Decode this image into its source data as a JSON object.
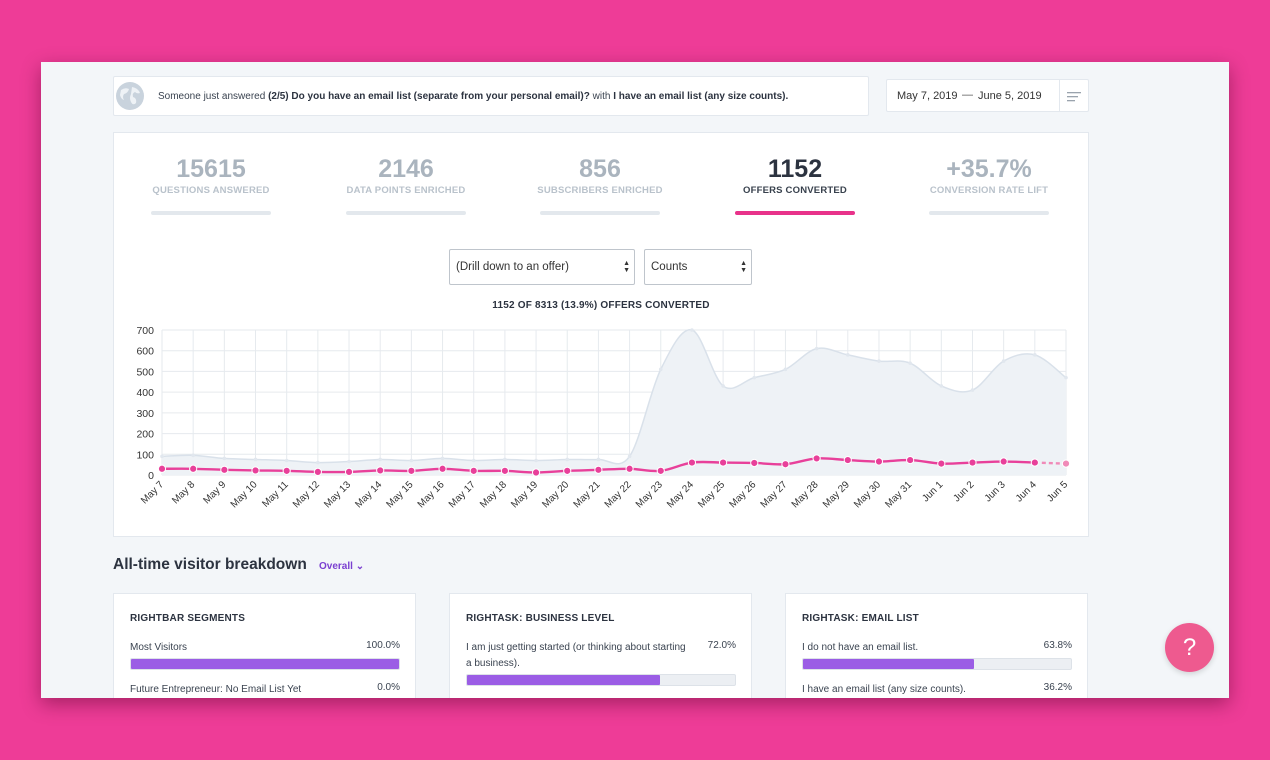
{
  "ticker": {
    "prefix": "Someone just answered",
    "step": "(2/5)",
    "question": "Do you have an email list (separate from your personal email)?",
    "with": "with",
    "answer": "I have an email list (any size counts)."
  },
  "date_range": {
    "start": "May 7, 2019",
    "separator": "—",
    "end": "June 5, 2019"
  },
  "stats": [
    {
      "value": "15615",
      "label": "QUESTIONS ANSWERED",
      "active": false
    },
    {
      "value": "2146",
      "label": "DATA POINTS ENRICHED",
      "active": false
    },
    {
      "value": "856",
      "label": "SUBSCRIBERS ENRICHED",
      "active": false
    },
    {
      "value": "1152",
      "label": "OFFERS CONVERTED",
      "active": true
    },
    {
      "value": "+35.7%",
      "label": "CONVERSION RATE LIFT",
      "active": false
    }
  ],
  "filters": {
    "offer_select": "(Drill down to an offer)",
    "mode_select": "Counts"
  },
  "chart_title": "1152 OF 8313 (13.9%) OFFERS CONVERTED",
  "chart_data": {
    "type": "line",
    "categories": [
      "May 7",
      "May 8",
      "May 9",
      "May 10",
      "May 11",
      "May 12",
      "May 13",
      "May 14",
      "May 15",
      "May 16",
      "May 17",
      "May 18",
      "May 19",
      "May 20",
      "May 21",
      "May 22",
      "May 23",
      "May 24",
      "May 25",
      "May 26",
      "May 27",
      "May 28",
      "May 29",
      "May 30",
      "May 31",
      "Jun 1",
      "Jun 2",
      "Jun 3",
      "Jun 4",
      "Jun 5"
    ],
    "series": [
      {
        "values": [
          90,
          95,
          80,
          75,
          70,
          60,
          65,
          75,
          70,
          80,
          70,
          75,
          70,
          75,
          75,
          90,
          510,
          700,
          430,
          470,
          510,
          610,
          580,
          550,
          540,
          430,
          410,
          550,
          580,
          470
        ],
        "color": "#d9e1ea"
      },
      {
        "values": [
          30,
          30,
          25,
          22,
          20,
          15,
          15,
          22,
          20,
          30,
          20,
          20,
          12,
          20,
          25,
          30,
          20,
          60,
          60,
          58,
          52,
          80,
          72,
          65,
          72,
          55,
          60,
          65,
          60,
          55
        ],
        "color": "#e8409a"
      }
    ],
    "ylim": [
      0,
      700
    ],
    "yticks": [
      0,
      100,
      200,
      300,
      400,
      500,
      600,
      700
    ],
    "grid": true
  },
  "breakdown": {
    "title": "All-time visitor breakdown",
    "filter": "Overall",
    "cards": [
      {
        "title": "RIGHTBAR SEGMENTS",
        "rows": [
          {
            "label": "Most Visitors",
            "pct": "100.0%",
            "value": 100.0
          },
          {
            "label": "Future Entrepreneur: No Email List Yet",
            "pct": "0.0%",
            "value": 0.0
          }
        ]
      },
      {
        "title": "RIGHTASK: BUSINESS LEVEL",
        "rows": [
          {
            "label": "I am just getting started (or thinking about starting a business).",
            "pct": "72.0%",
            "value": 72.0
          }
        ]
      },
      {
        "title": "RIGHTASK: EMAIL LIST",
        "rows": [
          {
            "label": "I do not have an email list.",
            "pct": "63.8%",
            "value": 63.8
          },
          {
            "label": "I have an email list (any size counts).",
            "pct": "36.2%",
            "value": 36.2
          }
        ]
      }
    ]
  },
  "help": {
    "label": "?"
  },
  "colors": {
    "accent": "#e8328a",
    "purple": "#9b5de5",
    "background": "#ee3c97"
  }
}
